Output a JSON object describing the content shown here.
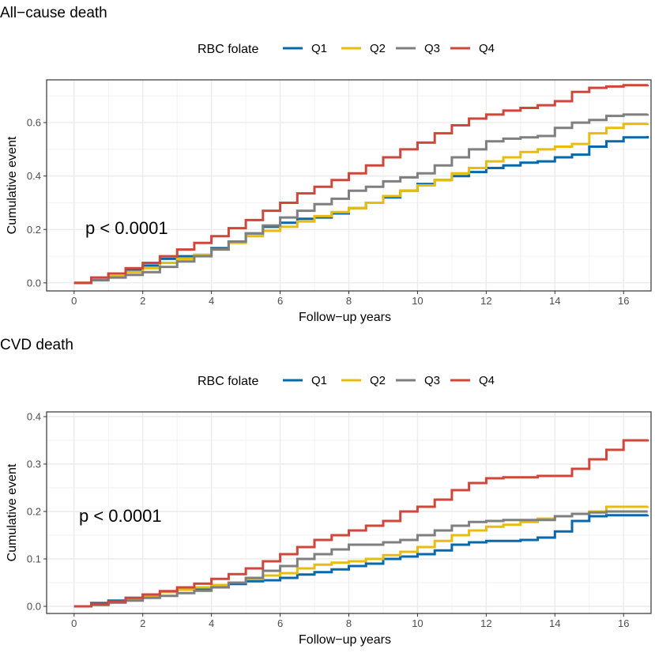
{
  "chart_data": [
    {
      "type": "line",
      "step": true,
      "title": "All−cause death",
      "xlabel": "Follow−up years",
      "ylabel": "Cumulative event",
      "xlim": [
        -0.8,
        16.8
      ],
      "ylim": [
        -0.03,
        0.76
      ],
      "xticks": [
        0,
        2,
        4,
        6,
        8,
        10,
        12,
        14,
        16
      ],
      "yticks": [
        0.0,
        0.2,
        0.4,
        0.6
      ],
      "xtick_labels": [
        "0",
        "2",
        "4",
        "6",
        "8",
        "10",
        "12",
        "14",
        "16"
      ],
      "ytick_labels": [
        "0.0",
        "0.2",
        "0.4",
        "0.6"
      ],
      "annotation": "p < 0.0001",
      "legend": {
        "title": "RBC folate",
        "position": "top"
      },
      "series": [
        {
          "name": "Q1",
          "color": "#0868AC",
          "x": [
            0,
            0.5,
            1,
            1.5,
            2,
            2.5,
            3,
            3.5,
            4,
            4.5,
            5,
            5.5,
            6,
            6.5,
            7,
            7.5,
            8,
            8.5,
            9,
            9.5,
            10,
            10.5,
            11,
            11.5,
            12,
            12.5,
            13,
            13.5,
            14,
            14.5,
            15,
            15.5,
            16,
            16.7
          ],
          "y": [
            0,
            0.02,
            0.035,
            0.05,
            0.065,
            0.09,
            0.1,
            0.105,
            0.13,
            0.155,
            0.185,
            0.21,
            0.225,
            0.24,
            0.245,
            0.26,
            0.28,
            0.3,
            0.32,
            0.345,
            0.37,
            0.385,
            0.4,
            0.415,
            0.43,
            0.44,
            0.45,
            0.455,
            0.47,
            0.48,
            0.51,
            0.53,
            0.545,
            0.55
          ]
        },
        {
          "name": "Q2",
          "color": "#E8BC0C",
          "x": [
            0,
            0.5,
            1,
            1.5,
            2,
            2.5,
            3,
            3.5,
            4,
            4.5,
            5,
            5.5,
            6,
            6.5,
            7,
            7.5,
            8,
            8.5,
            9,
            9.5,
            10,
            10.5,
            11,
            11.5,
            12,
            12.5,
            13,
            13.5,
            14,
            14.5,
            15,
            15.5,
            16,
            16.7
          ],
          "y": [
            0,
            0.01,
            0.025,
            0.04,
            0.055,
            0.075,
            0.09,
            0.105,
            0.125,
            0.15,
            0.175,
            0.195,
            0.21,
            0.23,
            0.25,
            0.265,
            0.28,
            0.3,
            0.325,
            0.345,
            0.365,
            0.385,
            0.41,
            0.43,
            0.455,
            0.47,
            0.49,
            0.5,
            0.51,
            0.52,
            0.56,
            0.58,
            0.595,
            0.597
          ]
        },
        {
          "name": "Q3",
          "color": "#7F7F7F",
          "x": [
            0,
            0.5,
            1,
            1.5,
            2,
            2.5,
            3,
            3.5,
            4,
            4.5,
            5,
            5.5,
            6,
            6.5,
            7,
            7.5,
            8,
            8.5,
            9,
            9.5,
            10,
            10.5,
            11,
            11.5,
            12,
            12.5,
            13,
            13.5,
            14,
            14.5,
            15,
            15.5,
            16,
            16.7
          ],
          "y": [
            0,
            0.01,
            0.02,
            0.03,
            0.04,
            0.06,
            0.08,
            0.1,
            0.125,
            0.155,
            0.185,
            0.215,
            0.245,
            0.27,
            0.295,
            0.315,
            0.345,
            0.36,
            0.38,
            0.395,
            0.41,
            0.44,
            0.47,
            0.5,
            0.53,
            0.54,
            0.545,
            0.55,
            0.58,
            0.6,
            0.61,
            0.625,
            0.63,
            0.632
          ]
        },
        {
          "name": "Q4",
          "color": "#D0463B",
          "x": [
            0,
            0.5,
            1,
            1.5,
            2,
            2.5,
            3,
            3.5,
            4,
            4.5,
            5,
            5.5,
            6,
            6.5,
            7,
            7.5,
            8,
            8.5,
            9,
            9.5,
            10,
            10.5,
            11,
            11.5,
            12,
            12.5,
            13,
            13.5,
            14,
            14.5,
            15,
            15.5,
            16,
            16.7
          ],
          "y": [
            0,
            0.02,
            0.035,
            0.055,
            0.075,
            0.1,
            0.125,
            0.15,
            0.175,
            0.205,
            0.235,
            0.27,
            0.3,
            0.335,
            0.36,
            0.385,
            0.41,
            0.44,
            0.47,
            0.5,
            0.525,
            0.56,
            0.59,
            0.615,
            0.63,
            0.645,
            0.655,
            0.665,
            0.68,
            0.715,
            0.73,
            0.735,
            0.74,
            0.742
          ]
        }
      ]
    },
    {
      "type": "line",
      "step": true,
      "title": "CVD death",
      "xlabel": "Follow−up years",
      "ylabel": "Cumulative event",
      "xlim": [
        -0.8,
        16.8
      ],
      "ylim": [
        -0.015,
        0.41
      ],
      "xticks": [
        0,
        2,
        4,
        6,
        8,
        10,
        12,
        14,
        16
      ],
      "yticks": [
        0.0,
        0.1,
        0.2,
        0.3,
        0.4
      ],
      "xtick_labels": [
        "0",
        "2",
        "4",
        "6",
        "8",
        "10",
        "12",
        "14",
        "16"
      ],
      "ytick_labels": [
        "0.0",
        "0.1",
        "0.2",
        "0.3",
        "0.4"
      ],
      "annotation": "p < 0.0001",
      "legend": {
        "title": "RBC folate",
        "position": "top"
      },
      "series": [
        {
          "name": "Q1",
          "color": "#0868AC",
          "x": [
            0,
            0.5,
            1,
            1.5,
            2,
            2.5,
            3,
            3.5,
            4,
            4.5,
            5,
            5.5,
            6,
            6.5,
            7,
            7.5,
            8,
            8.5,
            9,
            9.5,
            10,
            10.5,
            11,
            11.5,
            12,
            12.5,
            13,
            13.5,
            14,
            14.5,
            15,
            15.5,
            16,
            16.7
          ],
          "y": [
            0,
            0.007,
            0.012,
            0.018,
            0.025,
            0.03,
            0.035,
            0.035,
            0.04,
            0.047,
            0.053,
            0.055,
            0.06,
            0.067,
            0.072,
            0.078,
            0.085,
            0.09,
            0.1,
            0.105,
            0.11,
            0.118,
            0.13,
            0.135,
            0.138,
            0.138,
            0.14,
            0.145,
            0.158,
            0.18,
            0.19,
            0.192,
            0.192,
            0.193
          ]
        },
        {
          "name": "Q2",
          "color": "#E8BC0C",
          "x": [
            0,
            0.5,
            1,
            1.5,
            2,
            2.5,
            3,
            3.5,
            4,
            4.5,
            5,
            5.5,
            6,
            6.5,
            7,
            7.5,
            8,
            8.5,
            9,
            9.5,
            10,
            10.5,
            11,
            11.5,
            12,
            12.5,
            13,
            13.5,
            14,
            14.5,
            15,
            15.5,
            16,
            16.7
          ],
          "y": [
            0,
            0.003,
            0.008,
            0.015,
            0.022,
            0.03,
            0.035,
            0.04,
            0.045,
            0.05,
            0.058,
            0.065,
            0.07,
            0.08,
            0.088,
            0.092,
            0.095,
            0.1,
            0.108,
            0.115,
            0.125,
            0.138,
            0.15,
            0.16,
            0.168,
            0.172,
            0.178,
            0.185,
            0.19,
            0.195,
            0.2,
            0.21,
            0.21,
            0.211
          ]
        },
        {
          "name": "Q3",
          "color": "#7F7F7F",
          "x": [
            0,
            0.5,
            1,
            1.5,
            2,
            2.5,
            3,
            3.5,
            4,
            4.5,
            5,
            5.5,
            6,
            6.5,
            7,
            7.5,
            8,
            8.5,
            9,
            9.5,
            10,
            10.5,
            11,
            11.5,
            12,
            12.5,
            13,
            13.5,
            14,
            14.5,
            15,
            15.5,
            16,
            16.7
          ],
          "y": [
            0,
            0.003,
            0.008,
            0.012,
            0.018,
            0.022,
            0.028,
            0.033,
            0.04,
            0.05,
            0.06,
            0.075,
            0.085,
            0.1,
            0.11,
            0.12,
            0.13,
            0.13,
            0.135,
            0.14,
            0.15,
            0.16,
            0.17,
            0.178,
            0.18,
            0.182,
            0.182,
            0.182,
            0.19,
            0.195,
            0.198,
            0.2,
            0.2,
            0.2
          ]
        },
        {
          "name": "Q4",
          "color": "#D0463B",
          "x": [
            0,
            0.5,
            1,
            1.5,
            2,
            2.5,
            3,
            3.5,
            4,
            4.5,
            5,
            5.5,
            6,
            6.5,
            7,
            7.5,
            8,
            8.5,
            9,
            9.5,
            10,
            10.5,
            11,
            11.5,
            12,
            12.5,
            13,
            13.5,
            14,
            14.5,
            15,
            15.5,
            16,
            16.7
          ],
          "y": [
            0,
            0.005,
            0.01,
            0.018,
            0.025,
            0.032,
            0.04,
            0.048,
            0.058,
            0.068,
            0.08,
            0.095,
            0.11,
            0.125,
            0.14,
            0.15,
            0.16,
            0.17,
            0.18,
            0.2,
            0.21,
            0.225,
            0.245,
            0.26,
            0.27,
            0.272,
            0.272,
            0.275,
            0.275,
            0.29,
            0.31,
            0.33,
            0.35,
            0.352
          ]
        }
      ]
    }
  ]
}
